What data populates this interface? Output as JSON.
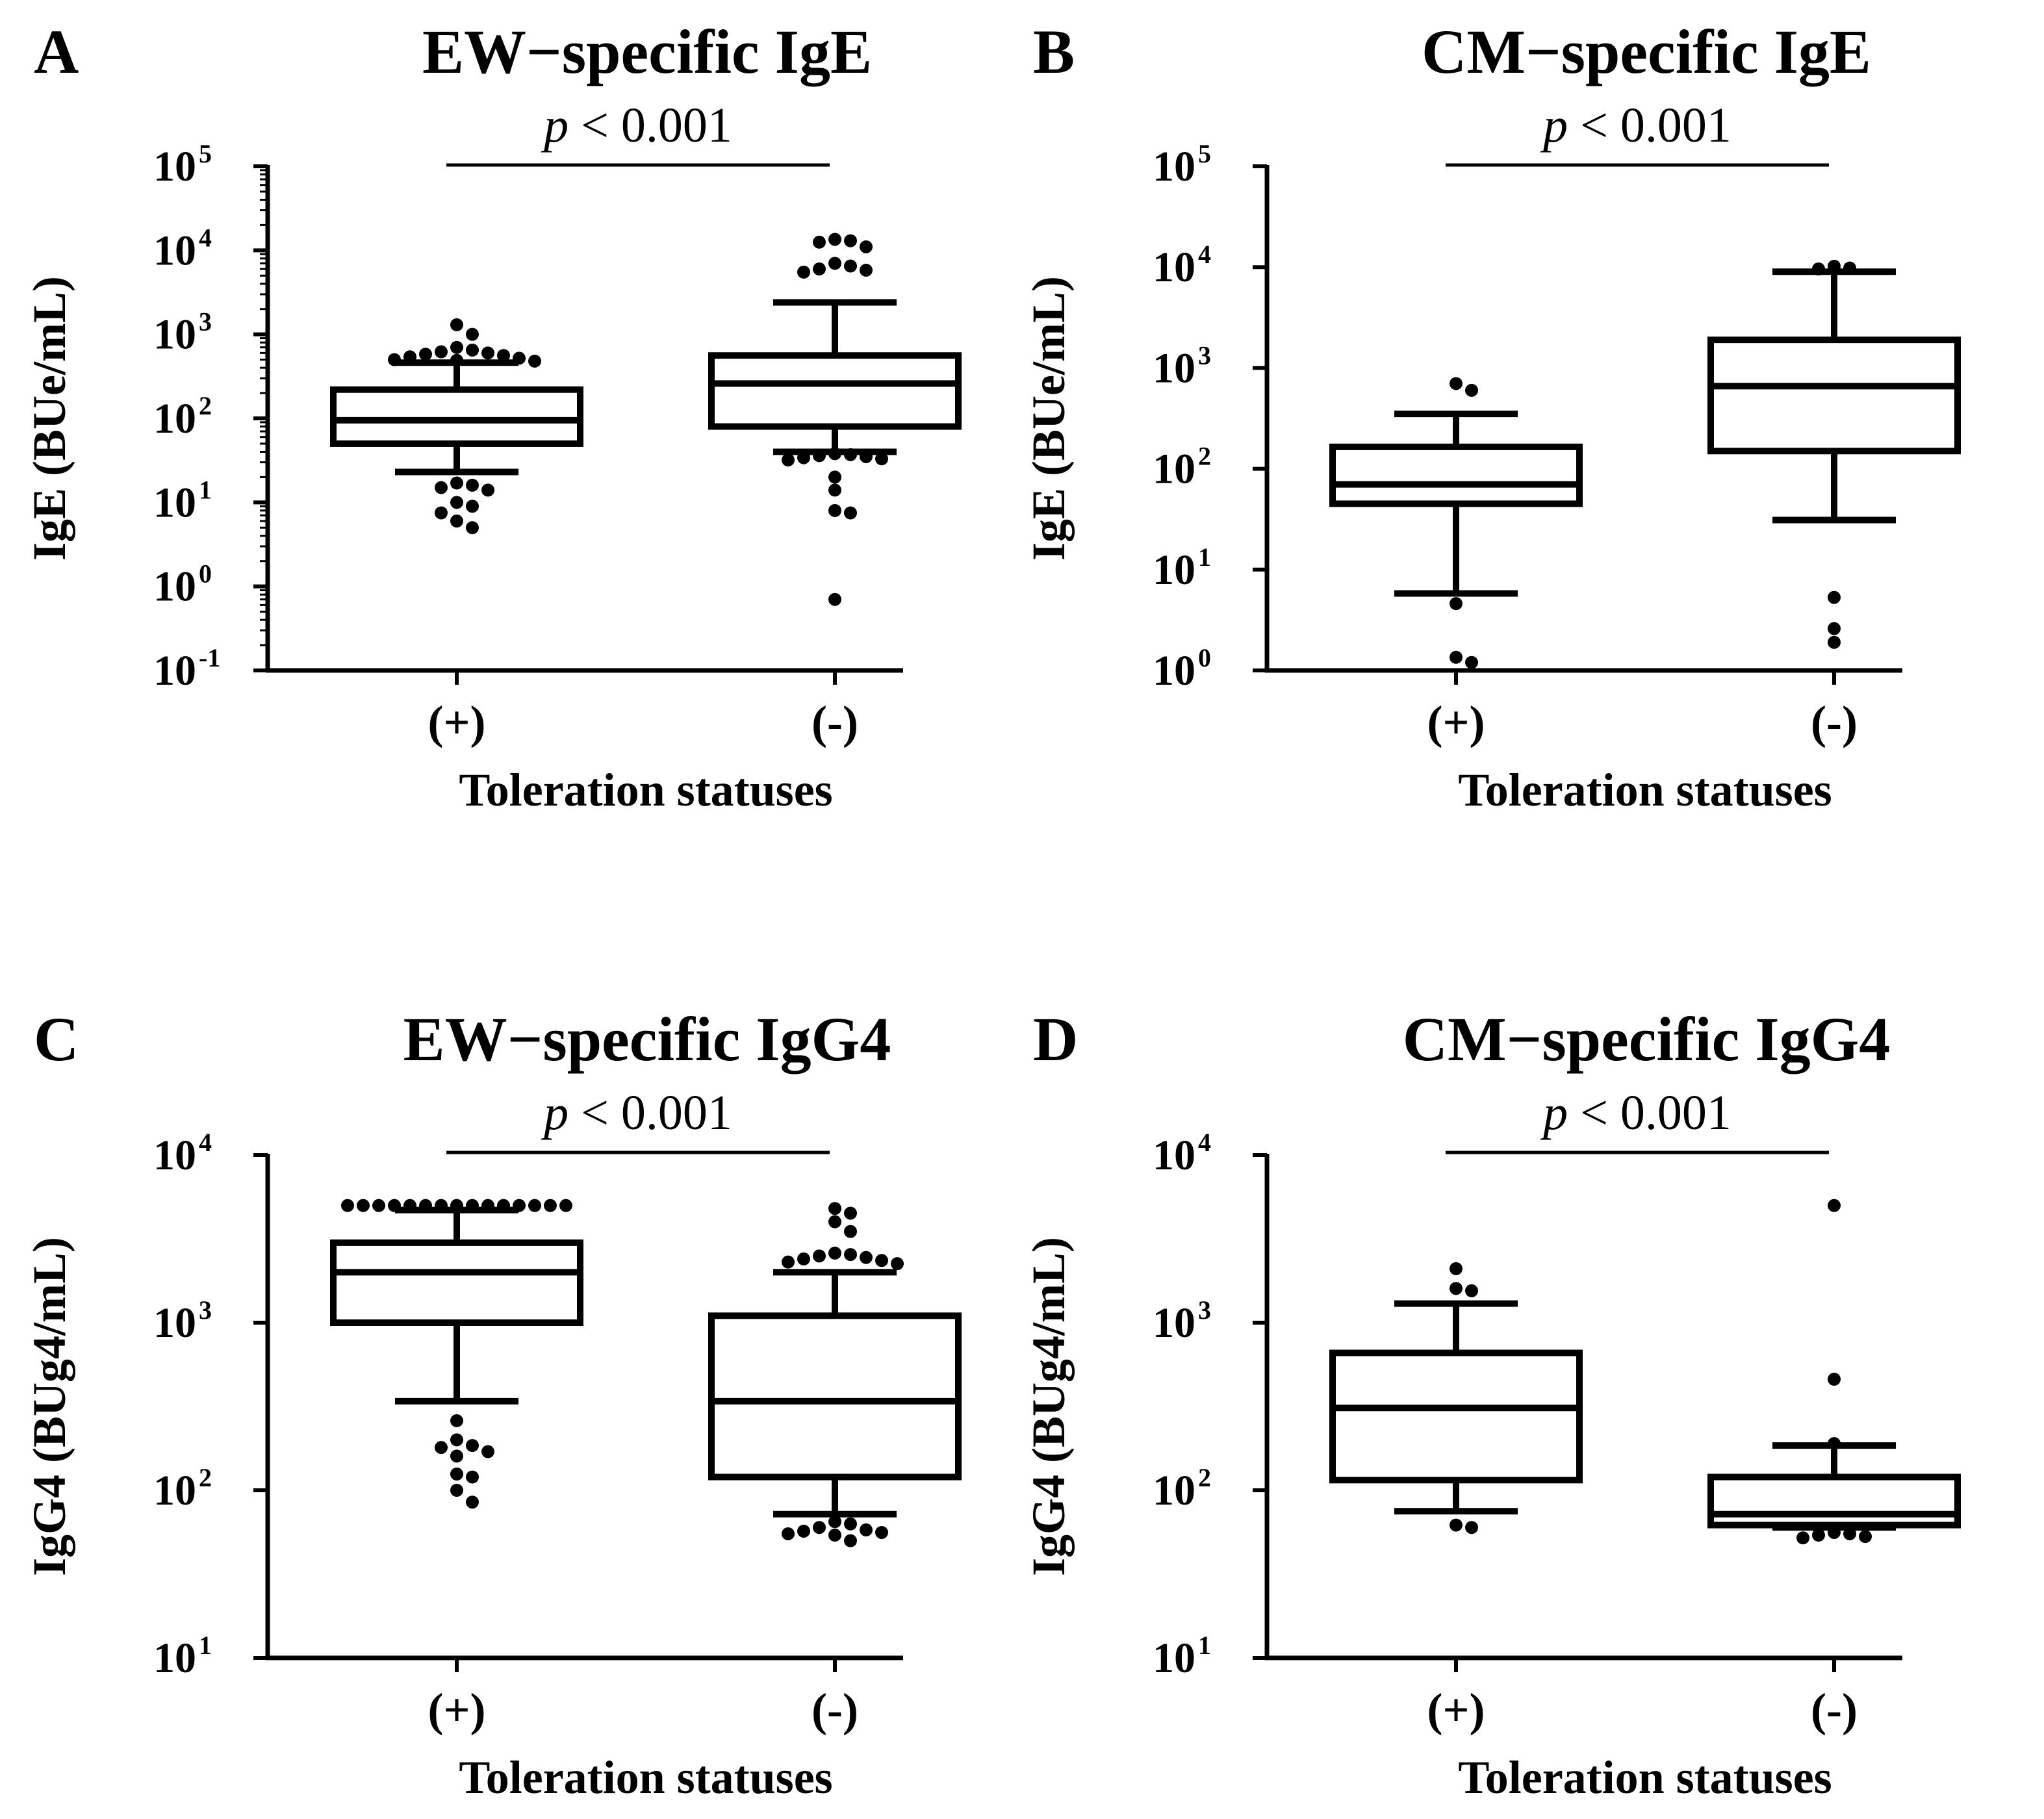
{
  "figure": {
    "colors": {
      "ink": "#000000",
      "background": "#ffffff"
    }
  },
  "chart_data": [
    {
      "type": "box",
      "panel": "A",
      "title": "EW−specific IgE",
      "significance": {
        "italic": "p",
        "rest": " < 0.001",
        "between": [
          "(+)",
          "(-)"
        ]
      },
      "xlabel": "Toleration statuses",
      "ylabel": "IgE (BUe/mL)",
      "yscale": "log",
      "ylim": [
        0.1,
        100000
      ],
      "yticks": [
        {
          "value": 0.1,
          "base": "10",
          "exp": "-1"
        },
        {
          "value": 1,
          "base": "10",
          "exp": "0"
        },
        {
          "value": 10,
          "base": "10",
          "exp": "1"
        },
        {
          "value": 100,
          "base": "10",
          "exp": "2"
        },
        {
          "value": 1000,
          "base": "10",
          "exp": "3"
        },
        {
          "value": 10000,
          "base": "10",
          "exp": "4"
        },
        {
          "value": 100000,
          "base": "10",
          "exp": "5"
        }
      ],
      "minor_ticks": true,
      "categories": [
        "(+)",
        "(-)"
      ],
      "boxes": [
        {
          "category": "(+)",
          "whisker_low": 23,
          "q1": 50,
          "median": 95,
          "q3": 220,
          "whisker_high": 460,
          "outliers": [
            1300,
            1000,
            700,
            650,
            620,
            600,
            580,
            560,
            540,
            520,
            500,
            490,
            480,
            17,
            16,
            15,
            14,
            10,
            9,
            7.5,
            6,
            5
          ]
        },
        {
          "category": "(-)",
          "whisker_low": 40,
          "q1": 80,
          "median": 260,
          "q3": 560,
          "whisker_high": 2400,
          "outliers": [
            13500,
            13000,
            12500,
            11000,
            7000,
            6500,
            6000,
            5800,
            5500,
            38,
            37,
            36,
            35,
            34,
            33,
            32,
            20,
            14,
            8,
            7.5,
            0.7
          ]
        }
      ]
    },
    {
      "type": "box",
      "panel": "B",
      "title": "CM−specific IgE",
      "significance": {
        "italic": "p",
        "rest": " < 0.001",
        "between": [
          "(+)",
          "(-)"
        ]
      },
      "xlabel": "Toleration statuses",
      "ylabel": "IgE (BUe/mL)",
      "yscale": "log",
      "ylim": [
        1,
        100000
      ],
      "yticks": [
        {
          "value": 1,
          "base": "10",
          "exp": "0"
        },
        {
          "value": 10,
          "base": "10",
          "exp": "1"
        },
        {
          "value": 100,
          "base": "10",
          "exp": "2"
        },
        {
          "value": 1000,
          "base": "10",
          "exp": "3"
        },
        {
          "value": 10000,
          "base": "10",
          "exp": "4"
        },
        {
          "value": 100000,
          "base": "10",
          "exp": "5"
        }
      ],
      "minor_ticks": false,
      "categories": [
        "(+)",
        "(-)"
      ],
      "boxes": [
        {
          "category": "(+)",
          "whisker_low": 5.8,
          "q1": 45,
          "median": 70,
          "q3": 165,
          "whisker_high": 350,
          "outliers": [
            700,
            600,
            4.6,
            1.35,
            1.2
          ]
        },
        {
          "category": "(-)",
          "whisker_low": 31,
          "q1": 150,
          "median": 660,
          "q3": 1900,
          "whisker_high": 9000,
          "outliers": [
            10200,
            9800,
            9600,
            5.3,
            2.6,
            1.9
          ]
        }
      ]
    },
    {
      "type": "box",
      "panel": "C",
      "title": "EW−specific IgG4",
      "significance": {
        "italic": "p",
        "rest": " < 0.001",
        "between": [
          "(+)",
          "(-)"
        ]
      },
      "xlabel": "Toleration statuses",
      "ylabel": "IgG4 (BUg4/mL)",
      "yscale": "log",
      "ylim": [
        10,
        10000
      ],
      "yticks": [
        {
          "value": 10,
          "base": "10",
          "exp": "1"
        },
        {
          "value": 100,
          "base": "10",
          "exp": "2"
        },
        {
          "value": 1000,
          "base": "10",
          "exp": "3"
        },
        {
          "value": 10000,
          "base": "10",
          "exp": "4"
        }
      ],
      "minor_ticks": false,
      "categories": [
        "(+)",
        "(-)"
      ],
      "boxes": [
        {
          "category": "(+)",
          "whisker_low": 340,
          "q1": 1000,
          "median": 2000,
          "q3": 3000,
          "whisker_high": 4700,
          "outliers": [
            5000,
            5000,
            5000,
            5000,
            5000,
            5000,
            5000,
            5000,
            5000,
            5000,
            5000,
            5000,
            5000,
            5000,
            5000,
            260,
            200,
            185,
            180,
            170,
            160,
            125,
            120,
            100,
            85
          ]
        },
        {
          "category": "(-)",
          "whisker_low": 72,
          "q1": 120,
          "median": 340,
          "q3": 1100,
          "whisker_high": 2000,
          "outliers": [
            4800,
            4500,
            4000,
            3500,
            2600,
            2550,
            2500,
            2450,
            2400,
            2350,
            2300,
            2250,
            65,
            63,
            60,
            58,
            57,
            56,
            55,
            54,
            50
          ]
        }
      ]
    },
    {
      "type": "box",
      "panel": "D",
      "title": "CM−specific IgG4",
      "significance": {
        "italic": "p",
        "rest": " < 0.001",
        "between": [
          "(+)",
          "(-)"
        ]
      },
      "xlabel": "Toleration statuses",
      "ylabel": "IgG4 (BUg4/mL)",
      "yscale": "log",
      "ylim": [
        10,
        10000
      ],
      "yticks": [
        {
          "value": 10,
          "base": "10",
          "exp": "1"
        },
        {
          "value": 100,
          "base": "10",
          "exp": "2"
        },
        {
          "value": 1000,
          "base": "10",
          "exp": "3"
        },
        {
          "value": 10000,
          "base": "10",
          "exp": "4"
        }
      ],
      "minor_ticks": false,
      "categories": [
        "(+)",
        "(-)"
      ],
      "boxes": [
        {
          "category": "(+)",
          "whisker_low": 75,
          "q1": 115,
          "median": 310,
          "q3": 660,
          "whisker_high": 1300,
          "outliers": [
            2100,
            1600,
            1550,
            62,
            60
          ]
        },
        {
          "category": "(-)",
          "whisker_low": 60,
          "q1": 62,
          "median": 72,
          "q3": 120,
          "whisker_high": 185,
          "outliers": [
            5000,
            460,
            190,
            56,
            55,
            54,
            53,
            52
          ]
        }
      ]
    }
  ]
}
